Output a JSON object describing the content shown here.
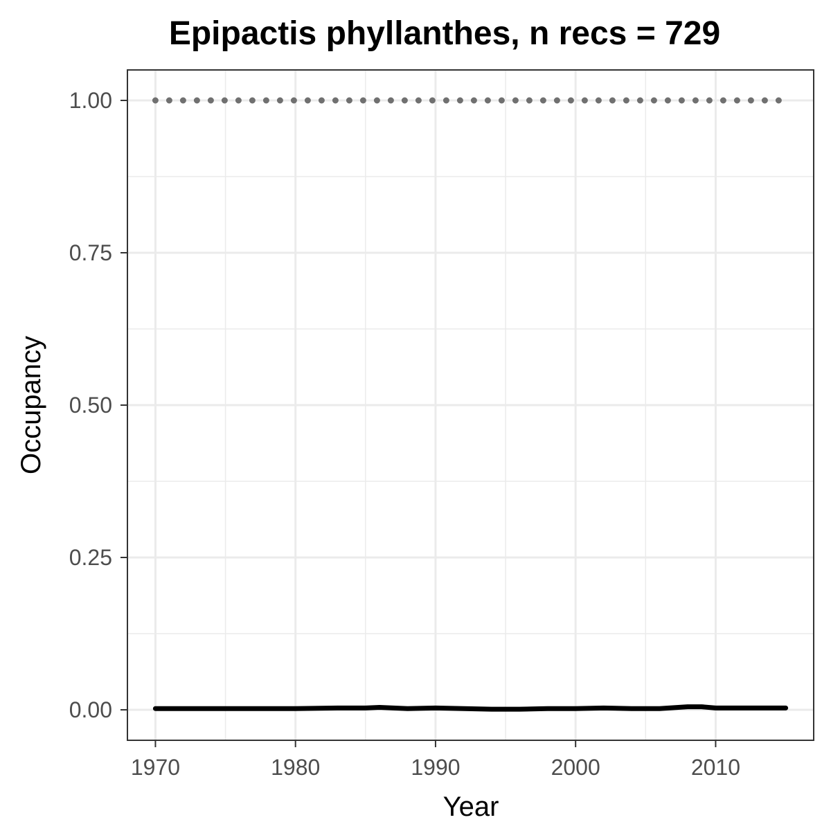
{
  "chart_data": {
    "type": "line",
    "title": "Epipactis phyllanthes, n recs = 729",
    "xlabel": "Year",
    "ylabel": "Occupancy",
    "xlim": [
      1968,
      2017
    ],
    "ylim": [
      -0.05,
      1.05
    ],
    "x_ticks": [
      1970,
      1980,
      1990,
      2000,
      2010
    ],
    "y_ticks": [
      0,
      0.25,
      0.5,
      0.75,
      1
    ],
    "x_tick_labels": [
      "1970",
      "1980",
      "1990",
      "2000",
      "2010"
    ],
    "y_tick_labels": [
      "0.00",
      "0.25",
      "0.50",
      "0.75",
      "1.00"
    ],
    "grid": true,
    "series": [
      {
        "style": "dotted",
        "color": "#707070",
        "x": [
          1970,
          1971,
          1972,
          1973,
          1974,
          1975,
          1976,
          1977,
          1978,
          1979,
          1980,
          1981,
          1982,
          1983,
          1984,
          1985,
          1986,
          1987,
          1988,
          1989,
          1990,
          1991,
          1992,
          1993,
          1994,
          1995,
          1996,
          1997,
          1998,
          1999,
          2000,
          2001,
          2002,
          2003,
          2004,
          2005,
          2006,
          2007,
          2008,
          2009,
          2010,
          2011,
          2012,
          2013,
          2014,
          2015
        ],
        "y": [
          1,
          1,
          1,
          1,
          1,
          1,
          1,
          1,
          1,
          1,
          1,
          1,
          1,
          1,
          1,
          1,
          1,
          1,
          1,
          1,
          1,
          1,
          1,
          1,
          1,
          1,
          1,
          1,
          1,
          1,
          1,
          1,
          1,
          1,
          1,
          1,
          1,
          1,
          1,
          1,
          1,
          1,
          1,
          1,
          1,
          1
        ]
      },
      {
        "style": "solid",
        "color": "#000000",
        "x": [
          1970,
          1975,
          1980,
          1983,
          1985,
          1986,
          1988,
          1990,
          1992,
          1994,
          1996,
          1998,
          2000,
          2002,
          2004,
          2006,
          2008,
          2009,
          2010,
          2012,
          2015
        ],
        "y": [
          0.002,
          0.002,
          0.002,
          0.003,
          0.003,
          0.004,
          0.002,
          0.003,
          0.002,
          0.001,
          0.001,
          0.002,
          0.002,
          0.003,
          0.002,
          0.002,
          0.005,
          0.005,
          0.003,
          0.003,
          0.003
        ]
      }
    ]
  }
}
